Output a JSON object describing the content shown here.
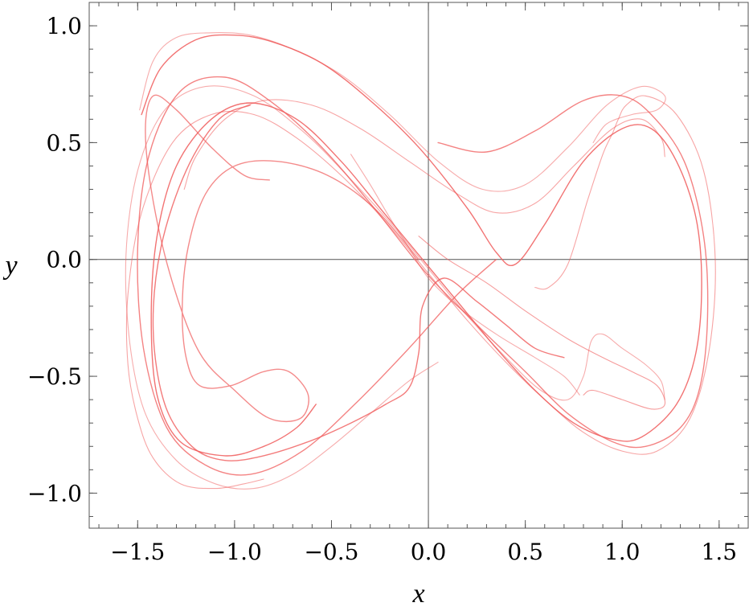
{
  "chart_data": {
    "type": "line",
    "title": "",
    "xlabel": "x",
    "ylabel": "y",
    "xlim": [
      -1.75,
      1.65
    ],
    "ylim": [
      -1.15,
      1.1
    ],
    "x_major_ticks": [
      {
        "value": -1.5,
        "label": "−1.5"
      },
      {
        "value": -1.0,
        "label": "−1.0"
      },
      {
        "value": -0.5,
        "label": "−0.5"
      },
      {
        "value": 0.0,
        "label": "0.0"
      },
      {
        "value": 0.5,
        "label": "0.5"
      },
      {
        "value": 1.0,
        "label": "1.0"
      },
      {
        "value": 1.5,
        "label": "1.5"
      }
    ],
    "y_major_ticks": [
      {
        "value": -1.0,
        "label": "−1.0"
      },
      {
        "value": -0.5,
        "label": "−0.5"
      },
      {
        "value": 0.0,
        "label": "0.0"
      },
      {
        "value": 0.5,
        "label": "0.5"
      },
      {
        "value": 1.0,
        "label": "1.0"
      }
    ],
    "grid": false,
    "legend": "none",
    "series_color": "#f05a5a",
    "axis_color": "#555555",
    "series": [
      {
        "x": [
          0.05,
          0.3,
          0.55,
          0.8,
          1.0,
          1.15,
          1.32,
          1.42,
          1.44,
          1.4,
          1.3,
          1.12,
          0.95,
          0.72,
          0.5,
          0.25,
          -0.02,
          -0.28,
          -0.55,
          -0.82,
          -1.05,
          -1.28,
          -1.44,
          -1.5,
          -1.47,
          -1.35,
          -1.15,
          -0.92,
          -0.65,
          -0.38,
          -0.1,
          0.15,
          0.35
        ],
        "y": [
          0.5,
          0.46,
          0.55,
          0.68,
          0.7,
          0.62,
          0.42,
          0.1,
          -0.25,
          -0.55,
          -0.72,
          -0.8,
          -0.78,
          -0.66,
          -0.48,
          -0.28,
          -0.05,
          0.22,
          0.48,
          0.68,
          0.78,
          0.72,
          0.45,
          0.05,
          -0.38,
          -0.72,
          -0.88,
          -0.92,
          -0.82,
          -0.62,
          -0.38,
          -0.15,
          0.0
        ]
      },
      {
        "x": [
          -1.48,
          -1.38,
          -1.2,
          -1.0,
          -0.8,
          -0.55,
          -0.3,
          -0.05,
          0.2,
          0.35,
          0.45,
          0.6,
          0.8,
          1.0,
          1.15,
          1.28,
          1.38,
          1.41,
          1.38,
          1.28,
          1.1,
          0.95,
          0.75,
          0.55,
          0.35,
          0.15,
          -0.05,
          -0.25,
          -0.45,
          -0.68,
          -0.92,
          -1.12,
          -1.3,
          -1.4,
          -1.43,
          -1.4,
          -1.28,
          -1.05,
          -0.85,
          -0.68,
          -0.58
        ],
        "y": [
          0.62,
          0.82,
          0.94,
          0.96,
          0.93,
          0.84,
          0.68,
          0.48,
          0.22,
          0.03,
          -0.02,
          0.15,
          0.42,
          0.56,
          0.56,
          0.42,
          0.18,
          -0.1,
          -0.4,
          -0.62,
          -0.76,
          -0.77,
          -0.7,
          -0.56,
          -0.38,
          -0.18,
          0.02,
          0.22,
          0.42,
          0.6,
          0.67,
          0.6,
          0.4,
          0.1,
          -0.25,
          -0.58,
          -0.78,
          -0.84,
          -0.8,
          -0.72,
          -0.62
        ]
      },
      {
        "x": [
          -0.05,
          -0.28,
          -0.52,
          -0.78,
          -1.0,
          -1.15,
          -1.24,
          -1.27,
          -1.25,
          -1.18,
          -1.02,
          -0.85,
          -0.72,
          -0.62,
          -0.66,
          -0.82,
          -1.0,
          -1.18,
          -1.32,
          -1.42,
          -1.46,
          -1.42,
          -1.3,
          -1.12,
          -0.95,
          -0.82
        ],
        "y": [
          0.0,
          0.22,
          0.36,
          0.42,
          0.4,
          0.28,
          0.05,
          -0.2,
          -0.42,
          -0.54,
          -0.54,
          -0.48,
          -0.48,
          -0.58,
          -0.68,
          -0.68,
          -0.56,
          -0.4,
          -0.1,
          0.25,
          0.55,
          0.7,
          0.64,
          0.48,
          0.36,
          0.34
        ]
      },
      {
        "x": [
          0.7,
          0.55,
          0.4,
          0.25,
          0.08,
          -0.03,
          -0.05,
          -0.1,
          -0.22,
          -0.4,
          -0.62,
          -0.85,
          -1.05,
          -1.22,
          -1.36,
          -1.42,
          -1.38,
          -1.25,
          -1.08,
          -0.92
        ],
        "y": [
          -0.42,
          -0.38,
          -0.28,
          -0.18,
          -0.08,
          -0.2,
          -0.4,
          -0.55,
          -0.62,
          -0.7,
          -0.78,
          -0.84,
          -0.86,
          -0.8,
          -0.62,
          -0.3,
          0.05,
          0.38,
          0.6,
          0.66
        ]
      },
      {
        "x": [
          0.55,
          0.62,
          0.72,
          0.82,
          0.9,
          0.95,
          0.98,
          1.02,
          1.12,
          1.28,
          1.42,
          1.48,
          1.45,
          1.35,
          1.18,
          1.0,
          0.8,
          0.6,
          0.4,
          0.2,
          0.0,
          -0.22,
          -0.45,
          -0.68,
          -0.9,
          -1.12,
          -1.32,
          -1.48,
          -1.55,
          -1.55,
          -1.5,
          -1.42,
          -1.28,
          -1.1,
          -0.95,
          -0.85
        ],
        "y": [
          -0.12,
          -0.12,
          -0.02,
          0.25,
          0.45,
          0.54,
          0.6,
          0.66,
          0.7,
          0.62,
          0.38,
          0.0,
          -0.38,
          -0.68,
          -0.82,
          -0.82,
          -0.74,
          -0.6,
          -0.44,
          -0.26,
          -0.06,
          0.16,
          0.36,
          0.52,
          0.62,
          0.62,
          0.5,
          0.2,
          -0.15,
          -0.45,
          -0.68,
          -0.85,
          -0.96,
          -0.98,
          -0.96,
          -0.94
        ]
      },
      {
        "x": [
          1.22,
          1.2,
          1.12,
          1.0,
          0.9,
          0.84,
          0.8,
          0.72,
          0.58,
          0.4,
          0.2,
          0.0,
          -0.2,
          -0.42,
          -0.65,
          -0.9,
          -1.15,
          -1.36,
          -1.5,
          -1.56,
          -1.54,
          -1.46,
          -1.3,
          -1.1,
          -0.9,
          -0.7,
          -0.5,
          -0.3,
          -0.1,
          0.05
        ],
        "y": [
          -0.6,
          -0.52,
          -0.45,
          -0.38,
          -0.32,
          -0.35,
          -0.5,
          -0.6,
          -0.56,
          -0.42,
          -0.24,
          -0.04,
          0.16,
          0.36,
          0.55,
          0.7,
          0.74,
          0.64,
          0.38,
          0.02,
          -0.36,
          -0.66,
          -0.86,
          -0.96,
          -0.98,
          -0.92,
          -0.8,
          -0.66,
          -0.52,
          -0.44
        ]
      },
      {
        "x": [
          -1.49,
          -1.42,
          -1.3,
          -1.12,
          -0.92,
          -0.7,
          -0.45,
          -0.2,
          0.05,
          0.28,
          0.5,
          0.72,
          0.92,
          1.1,
          1.22,
          1.18,
          1.05,
          0.92,
          0.85
        ],
        "y": [
          0.64,
          0.85,
          0.95,
          0.97,
          0.96,
          0.9,
          0.79,
          0.62,
          0.42,
          0.3,
          0.32,
          0.48,
          0.66,
          0.74,
          0.7,
          0.64,
          0.62,
          0.58,
          0.5
        ]
      },
      {
        "x": [
          -1.26,
          -1.2,
          -1.05,
          -0.85,
          -0.6,
          -0.35,
          -0.1,
          0.15,
          0.35,
          0.55,
          0.75,
          0.95,
          1.1,
          1.2,
          1.22
        ],
        "y": [
          0.3,
          0.44,
          0.6,
          0.68,
          0.66,
          0.56,
          0.42,
          0.28,
          0.2,
          0.24,
          0.4,
          0.56,
          0.6,
          0.52,
          0.44
        ]
      },
      {
        "x": [
          -0.05,
          0.1,
          0.3,
          0.5,
          0.72,
          0.9,
          1.05,
          1.18,
          1.22,
          1.15,
          1.0,
          0.85,
          0.8
        ],
        "y": [
          0.1,
          0.0,
          -0.1,
          -0.22,
          -0.34,
          -0.42,
          -0.48,
          -0.54,
          -0.62,
          -0.64,
          -0.6,
          -0.56,
          -0.58
        ]
      },
      {
        "x": [
          -0.4,
          -0.3,
          -0.2,
          -0.1,
          0.0,
          0.15,
          0.35,
          0.55,
          0.7,
          0.78
        ],
        "y": [
          0.45,
          0.32,
          0.18,
          0.05,
          -0.08,
          -0.2,
          -0.32,
          -0.42,
          -0.5,
          -0.58
        ]
      }
    ]
  }
}
